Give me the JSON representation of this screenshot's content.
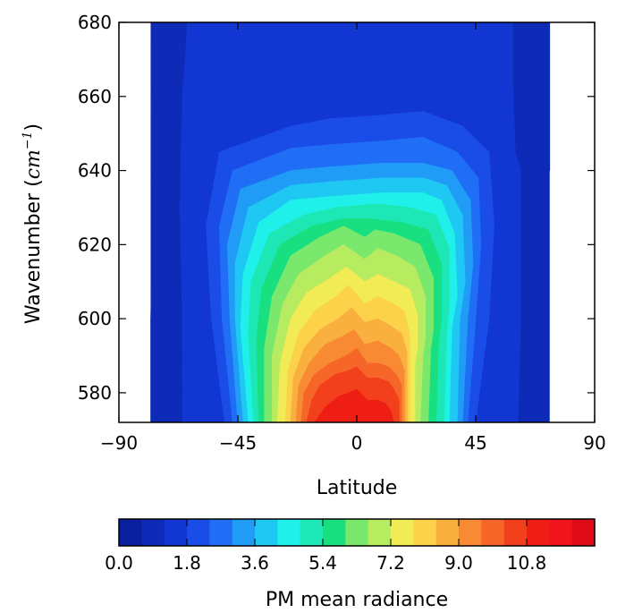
{
  "chart_data": {
    "type": "contour",
    "xlabel": "Latitude",
    "ylabel": {
      "text": "Wavenumber (",
      "unit": "cm",
      "exp": "−1",
      "close": ")"
    },
    "xlim": [
      -90,
      90
    ],
    "ylim": [
      572,
      680
    ],
    "xticks": [
      -90,
      -45,
      0,
      45,
      90
    ],
    "xtick_labels": [
      "−90",
      "−45",
      "0",
      "45",
      "90"
    ],
    "yticks": [
      580,
      600,
      620,
      640,
      660,
      680
    ],
    "ytick_labels": [
      "580",
      "600",
      "620",
      "640",
      "660",
      "680"
    ],
    "data_extent": {
      "lat": [
        -78,
        73
      ],
      "wavenumber": [
        572,
        680
      ]
    },
    "colorbar": {
      "label": "PM mean radiance",
      "range": [
        0.0,
        12.6
      ],
      "step": 0.6,
      "tick_values": [
        0.0,
        1.8,
        3.6,
        5.4,
        7.2,
        9.0,
        10.8
      ],
      "tick_labels": [
        "0.0",
        "1.8",
        "3.6",
        "5.4",
        "7.2",
        "9.0",
        "10.8"
      ],
      "colors": [
        "#0a1f9e",
        "#0d2bb6",
        "#1236d2",
        "#1a4de8",
        "#1f6ef5",
        "#209cf6",
        "#1fc7f3",
        "#1ff0ea",
        "#1de7b5",
        "#18e081",
        "#7ae86c",
        "#b7ec60",
        "#f1eb55",
        "#fcd24a",
        "#f9b03e",
        "#f88a34",
        "#f66628",
        "#f2401c",
        "#ee1e14",
        "#f0141c",
        "#de0a16"
      ],
      "orientation": "horizontal"
    },
    "series": [
      {
        "level": 0.6,
        "points": [
          [
            -78,
            572
          ],
          [
            -78,
            600
          ],
          [
            -77,
            630
          ],
          [
            -76,
            662
          ],
          [
            -77,
            680
          ],
          [
            -65,
            680
          ],
          [
            -66,
            660
          ],
          [
            -67,
            630
          ],
          [
            -67,
            600
          ],
          [
            -66,
            572
          ]
        ]
      },
      {
        "level": 0.6,
        "points": [
          [
            59,
            680
          ],
          [
            59,
            665
          ],
          [
            60,
            645
          ],
          [
            62,
            640
          ],
          [
            73,
            640
          ],
          [
            73,
            680
          ]
        ]
      },
      {
        "level": 1.2,
        "points": [
          [
            -66,
            572
          ],
          [
            -66,
            600
          ],
          [
            -67,
            630
          ],
          [
            -66,
            660
          ],
          [
            -64,
            680
          ],
          [
            59,
            680
          ],
          [
            59,
            665
          ],
          [
            60,
            645
          ],
          [
            62,
            640
          ],
          [
            62,
            600
          ],
          [
            61,
            572
          ]
        ]
      },
      {
        "level": 1.8,
        "points": [
          [
            -50,
            572
          ],
          [
            -55,
            600
          ],
          [
            -57,
            625
          ],
          [
            -52,
            645
          ],
          [
            -25,
            652
          ],
          [
            -10,
            654
          ],
          [
            10,
            655
          ],
          [
            25,
            656
          ],
          [
            40,
            652
          ],
          [
            50,
            645
          ],
          [
            52,
            625
          ],
          [
            50,
            600
          ],
          [
            45,
            572
          ]
        ]
      },
      {
        "level": 2.4,
        "points": [
          [
            -47,
            572
          ],
          [
            -51,
            600
          ],
          [
            -52,
            625
          ],
          [
            -47,
            640
          ],
          [
            -25,
            646
          ],
          [
            -10,
            647
          ],
          [
            10,
            648
          ],
          [
            25,
            649
          ],
          [
            38,
            645
          ],
          [
            46,
            638
          ],
          [
            47,
            620
          ],
          [
            45,
            600
          ],
          [
            42,
            572
          ]
        ]
      },
      {
        "level": 3.0,
        "points": [
          [
            -45,
            572
          ],
          [
            -48,
            600
          ],
          [
            -49,
            620
          ],
          [
            -44,
            635
          ],
          [
            -25,
            640
          ],
          [
            -10,
            641
          ],
          [
            10,
            642
          ],
          [
            25,
            642
          ],
          [
            36,
            640
          ],
          [
            43,
            632
          ],
          [
            44,
            615
          ],
          [
            42,
            600
          ],
          [
            40,
            572
          ]
        ]
      },
      {
        "level": 3.6,
        "points": [
          [
            -43,
            572
          ],
          [
            -46,
            600
          ],
          [
            -46,
            615
          ],
          [
            -41,
            630
          ],
          [
            -25,
            636
          ],
          [
            -10,
            637
          ],
          [
            10,
            638
          ],
          [
            25,
            638
          ],
          [
            34,
            636
          ],
          [
            40,
            628
          ],
          [
            41,
            610
          ],
          [
            39,
            600
          ],
          [
            38,
            572
          ]
        ]
      },
      {
        "level": 4.2,
        "points": [
          [
            -41,
            572
          ],
          [
            -44,
            598
          ],
          [
            -43,
            612
          ],
          [
            -37,
            626
          ],
          [
            -25,
            632
          ],
          [
            -10,
            633
          ],
          [
            10,
            634
          ],
          [
            25,
            634
          ],
          [
            32,
            632
          ],
          [
            37,
            623
          ],
          [
            38,
            606
          ],
          [
            36,
            598
          ],
          [
            35,
            572
          ]
        ]
      },
      {
        "level": 4.8,
        "points": [
          [
            -39,
            572
          ],
          [
            -41,
            596
          ],
          [
            -40,
            610
          ],
          [
            -33,
            623
          ],
          [
            -20,
            628
          ],
          [
            -8,
            630
          ],
          [
            8,
            631
          ],
          [
            20,
            630
          ],
          [
            30,
            628
          ],
          [
            35,
            619
          ],
          [
            35,
            603
          ],
          [
            34,
            596
          ],
          [
            33,
            572
          ]
        ]
      },
      {
        "level": 5.4,
        "points": [
          [
            -37,
            572
          ],
          [
            -38,
            594
          ],
          [
            -36,
            608
          ],
          [
            -29,
            620
          ],
          [
            -17,
            625
          ],
          [
            -5,
            627
          ],
          [
            5,
            627
          ],
          [
            17,
            626
          ],
          [
            27,
            624
          ],
          [
            32,
            615
          ],
          [
            32,
            600
          ],
          [
            31,
            594
          ],
          [
            30,
            572
          ]
        ]
      },
      {
        "level": 6.0,
        "points": [
          [
            -35,
            572
          ],
          [
            -35,
            592
          ],
          [
            -32,
            606
          ],
          [
            -25,
            617
          ],
          [
            -14,
            622
          ],
          [
            -5,
            625
          ],
          [
            3,
            622
          ],
          [
            7,
            624
          ],
          [
            14,
            623
          ],
          [
            24,
            620
          ],
          [
            29,
            611
          ],
          [
            29,
            597
          ],
          [
            28,
            592
          ],
          [
            27,
            572
          ]
        ]
      },
      {
        "level": 6.6,
        "points": [
          [
            -32,
            572
          ],
          [
            -32,
            590
          ],
          [
            -28,
            604
          ],
          [
            -22,
            612
          ],
          [
            -12,
            617
          ],
          [
            -5,
            620
          ],
          [
            3,
            616
          ],
          [
            8,
            619
          ],
          [
            15,
            617
          ],
          [
            22,
            614
          ],
          [
            26,
            606
          ],
          [
            26,
            595
          ],
          [
            25,
            590
          ],
          [
            24,
            572
          ]
        ]
      },
      {
        "level": 7.2,
        "points": [
          [
            -30,
            572
          ],
          [
            -29,
            588
          ],
          [
            -25,
            600
          ],
          [
            -19,
            607
          ],
          [
            -10,
            611
          ],
          [
            -4,
            614
          ],
          [
            3,
            610
          ],
          [
            8,
            612
          ],
          [
            14,
            610
          ],
          [
            20,
            608
          ],
          [
            23,
            601
          ],
          [
            23,
            592
          ],
          [
            22,
            588
          ],
          [
            22,
            572
          ]
        ]
      },
      {
        "level": 7.8,
        "points": [
          [
            -27,
            572
          ],
          [
            -26,
            586
          ],
          [
            -22,
            596
          ],
          [
            -16,
            602
          ],
          [
            -8,
            606
          ],
          [
            -3,
            609
          ],
          [
            3,
            604
          ],
          [
            8,
            606
          ],
          [
            14,
            604
          ],
          [
            18,
            602
          ],
          [
            20,
            596
          ],
          [
            20,
            589
          ],
          [
            20,
            586
          ],
          [
            20,
            572
          ]
        ]
      },
      {
        "level": 8.4,
        "points": [
          [
            -25,
            572
          ],
          [
            -24,
            584
          ],
          [
            -20,
            592
          ],
          [
            -14,
            597
          ],
          [
            -7,
            600
          ],
          [
            -2,
            603
          ],
          [
            3,
            599
          ],
          [
            8,
            600
          ],
          [
            13,
            598
          ],
          [
            17,
            596
          ],
          [
            19,
            591
          ],
          [
            19,
            586
          ],
          [
            19,
            572
          ]
        ]
      },
      {
        "level": 9.0,
        "points": [
          [
            -23,
            572
          ],
          [
            -22,
            582
          ],
          [
            -18,
            588
          ],
          [
            -12,
            593
          ],
          [
            -6,
            595
          ],
          [
            -1,
            597
          ],
          [
            3,
            593
          ],
          [
            8,
            594
          ],
          [
            13,
            592
          ],
          [
            16,
            590
          ],
          [
            18,
            586
          ],
          [
            18,
            582
          ],
          [
            18,
            572
          ]
        ]
      },
      {
        "level": 9.6,
        "points": [
          [
            -21,
            572
          ],
          [
            -20,
            580
          ],
          [
            -16,
            585
          ],
          [
            -10,
            588
          ],
          [
            -4,
            590
          ],
          [
            0,
            592
          ],
          [
            4,
            588
          ],
          [
            8,
            588
          ],
          [
            12,
            587
          ],
          [
            15,
            585
          ],
          [
            17,
            582
          ],
          [
            17,
            572
          ]
        ]
      },
      {
        "level": 10.2,
        "points": [
          [
            -19,
            572
          ],
          [
            -17,
            578
          ],
          [
            -14,
            582
          ],
          [
            -8,
            585
          ],
          [
            -3,
            586
          ],
          [
            0,
            587
          ],
          [
            4,
            584
          ],
          [
            8,
            584
          ],
          [
            12,
            583
          ],
          [
            14,
            581
          ],
          [
            16,
            578
          ],
          [
            16,
            572
          ]
        ]
      },
      {
        "level": 10.8,
        "points": [
          [
            -16,
            572
          ],
          [
            -12,
            576
          ],
          [
            -7,
            579
          ],
          [
            -3,
            580
          ],
          [
            0,
            581
          ],
          [
            4,
            578
          ],
          [
            8,
            578
          ],
          [
            11,
            577
          ],
          [
            13,
            575
          ],
          [
            14,
            572
          ]
        ]
      }
    ]
  }
}
